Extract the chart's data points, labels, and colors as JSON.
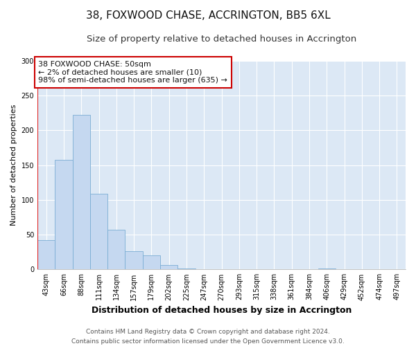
{
  "title": "38, FOXWOOD CHASE, ACCRINGTON, BB5 6XL",
  "subtitle": "Size of property relative to detached houses in Accrington",
  "xlabel": "Distribution of detached houses by size in Accrington",
  "ylabel": "Number of detached properties",
  "bin_labels": [
    "43sqm",
    "66sqm",
    "88sqm",
    "111sqm",
    "134sqm",
    "157sqm",
    "179sqm",
    "202sqm",
    "225sqm",
    "247sqm",
    "270sqm",
    "293sqm",
    "315sqm",
    "338sqm",
    "361sqm",
    "384sqm",
    "406sqm",
    "429sqm",
    "452sqm",
    "474sqm",
    "497sqm"
  ],
  "bar_values": [
    42,
    158,
    222,
    109,
    57,
    26,
    20,
    6,
    1,
    0,
    0,
    0,
    0,
    0,
    0,
    0,
    1,
    0,
    0,
    0,
    0
  ],
  "bar_color": "#c5d8f0",
  "bar_edge_color": "#7aadd4",
  "highlight_color": "#dd2222",
  "ylim": [
    0,
    300
  ],
  "yticks": [
    0,
    50,
    100,
    150,
    200,
    250,
    300
  ],
  "annotation_title": "38 FOXWOOD CHASE: 50sqm",
  "annotation_line1": "← 2% of detached houses are smaller (10)",
  "annotation_line2": "98% of semi-detached houses are larger (635) →",
  "annotation_box_color": "#ffffff",
  "annotation_border_color": "#cc0000",
  "footer_line1": "Contains HM Land Registry data © Crown copyright and database right 2024.",
  "footer_line2": "Contains public sector information licensed under the Open Government Licence v3.0.",
  "plot_bg_color": "#dce8f5",
  "figure_bg_color": "#ffffff",
  "grid_color": "#ffffff",
  "title_fontsize": 11,
  "subtitle_fontsize": 9.5,
  "xlabel_fontsize": 9,
  "ylabel_fontsize": 8,
  "tick_fontsize": 7,
  "annotation_fontsize": 8,
  "footer_fontsize": 6.5
}
